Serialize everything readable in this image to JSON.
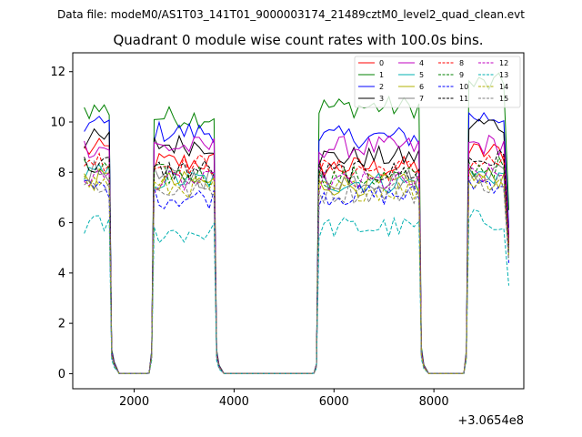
{
  "chart_data": {
    "type": "line",
    "suptitle": "Data file: modeM0/AS1T03_141T01_9000003174_21489cztM0_level2_quad_clean.evt",
    "title": "Quadrant 0 module wise count rates with 100.0s bins.",
    "xlabel": "",
    "ylabel": "",
    "x_offset_label": "+3.0654e8",
    "xlim": [
      770,
      9800
    ],
    "ylim": [
      -0.6,
      12.75
    ],
    "x_ticks": [
      2000,
      4000,
      6000,
      8000
    ],
    "x_tick_labels": [
      "2000",
      "4000",
      "6000",
      "8000"
    ],
    "y_ticks": [
      0,
      2,
      4,
      6,
      8,
      10,
      12
    ],
    "y_tick_labels": [
      "0",
      "2",
      "4",
      "6",
      "8",
      "10",
      "12"
    ],
    "grid": false,
    "legend_position": "upper right",
    "segments": [
      {
        "start": 1000,
        "end": 1500,
        "step": 100
      },
      {
        "start": 2400,
        "end": 3600,
        "step": 100
      },
      {
        "start": 5700,
        "end": 7700,
        "step": 100
      },
      {
        "start": 8700,
        "end": 9400,
        "step": 100
      }
    ],
    "transitions": [
      {
        "left": 1500,
        "right": 2400,
        "pts": [
          [
            1550,
            0.85
          ],
          [
            1600,
            0.4
          ],
          [
            1700,
            0.0
          ],
          [
            2200,
            0.0
          ],
          [
            2300,
            0.02
          ],
          [
            2350,
            0.8
          ]
        ]
      },
      {
        "left": 3600,
        "right": 5700,
        "pts": [
          [
            3650,
            0.85
          ],
          [
            3700,
            0.3
          ],
          [
            3800,
            0.0
          ],
          [
            5500,
            0.0
          ],
          [
            5600,
            0.02
          ],
          [
            5650,
            0.35
          ]
        ]
      },
      {
        "left": 7700,
        "right": 8700,
        "pts": [
          [
            7750,
            0.9
          ],
          [
            7800,
            0.3
          ],
          [
            7900,
            0.0
          ],
          [
            8500,
            0.0
          ],
          [
            8600,
            0.02
          ],
          [
            8650,
            0.8
          ]
        ]
      }
    ],
    "final_x": 9500,
    "series": [
      {
        "name": "0",
        "color": "#ff0000",
        "dash": "solid",
        "levels": [
          8.9,
          8.4,
          8.2,
          8.8
        ],
        "tail": 5.2
      },
      {
        "name": "1",
        "color": "#008000",
        "dash": "solid",
        "levels": [
          10.5,
          10.2,
          10.6,
          11.5
        ],
        "tail": 6.5
      },
      {
        "name": "2",
        "color": "#0000ff",
        "dash": "solid",
        "levels": [
          9.9,
          9.6,
          9.4,
          10.2
        ],
        "tail": 5.8
      },
      {
        "name": "3",
        "color": "#000000",
        "dash": "solid",
        "levels": [
          9.3,
          9.1,
          8.6,
          9.9
        ],
        "tail": 5.5
      },
      {
        "name": "4",
        "color": "#c000c0",
        "dash": "solid",
        "levels": [
          9.0,
          9.0,
          9.0,
          9.1
        ],
        "tail": 5.4
      },
      {
        "name": "5",
        "color": "#00b0b0",
        "dash": "solid",
        "levels": [
          7.9,
          7.7,
          7.6,
          7.9
        ],
        "tail": 4.8
      },
      {
        "name": "6",
        "color": "#b0b000",
        "dash": "solid",
        "levels": [
          7.7,
          7.6,
          7.5,
          7.8
        ],
        "tail": 4.7
      },
      {
        "name": "7",
        "color": "#808080",
        "dash": "solid",
        "levels": [
          8.0,
          7.8,
          7.7,
          8.0
        ],
        "tail": 4.9
      },
      {
        "name": "8",
        "color": "#ff0000",
        "dash": "dashed",
        "levels": [
          8.5,
          8.3,
          8.1,
          8.4
        ],
        "tail": 5.1
      },
      {
        "name": "9",
        "color": "#008000",
        "dash": "dashed",
        "levels": [
          8.1,
          7.9,
          7.8,
          8.2
        ],
        "tail": 4.9
      },
      {
        "name": "10",
        "color": "#0000ff",
        "dash": "dashed",
        "levels": [
          7.4,
          7.0,
          7.1,
          7.6
        ],
        "tail": 4.4
      },
      {
        "name": "11",
        "color": "#000000",
        "dash": "dashed",
        "levels": [
          8.3,
          8.1,
          8.0,
          8.5
        ],
        "tail": 5.0
      },
      {
        "name": "12",
        "color": "#c000c0",
        "dash": "dashed",
        "levels": [
          7.8,
          7.6,
          7.6,
          7.9
        ],
        "tail": 4.8
      },
      {
        "name": "13",
        "color": "#00b0b0",
        "dash": "dashed",
        "levels": [
          5.9,
          5.6,
          5.8,
          6.1
        ],
        "tail": 3.5
      },
      {
        "name": "14",
        "color": "#b0b000",
        "dash": "dashed",
        "levels": [
          7.6,
          7.4,
          7.3,
          7.7
        ],
        "tail": 4.6
      },
      {
        "name": "15",
        "color": "#808080",
        "dash": "dashed",
        "levels": [
          7.5,
          7.3,
          7.2,
          7.6
        ],
        "tail": 4.5
      }
    ]
  }
}
